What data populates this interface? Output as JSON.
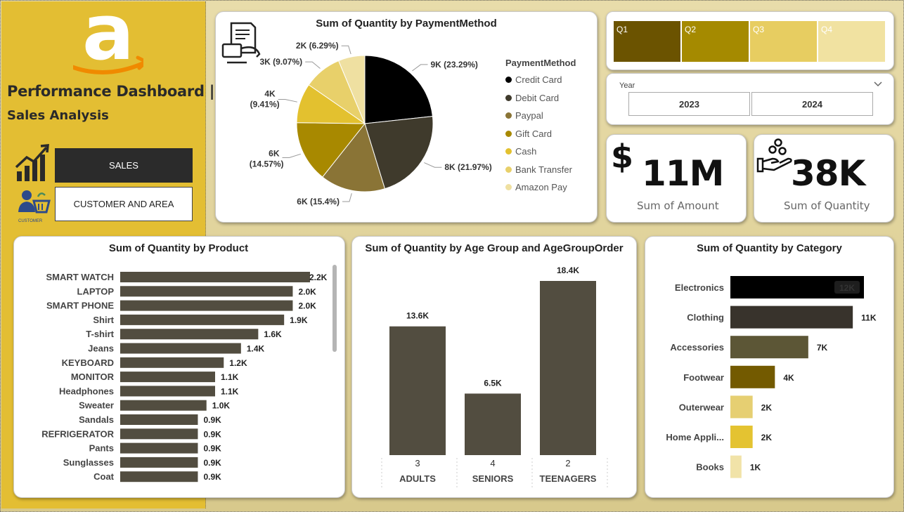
{
  "sidebar": {
    "title": "Performance Dashboard |",
    "subtitle": "Sales Analysis",
    "nav_sales": "SALES",
    "nav_customer": "CUSTOMER AND AREA",
    "customer_icon_caption": "CUSTOMER"
  },
  "kpi": {
    "amount_value": "11M",
    "amount_label": "Sum of Amount",
    "quantity_value": "38K",
    "quantity_label": "Sum of Quantity"
  },
  "quarters": [
    {
      "label": "Q1",
      "color": "#6b5300"
    },
    {
      "label": "Q2",
      "color": "#a58a00"
    },
    {
      "label": "Q3",
      "color": "#e7cd61"
    },
    {
      "label": "Q4",
      "color": "#f1e2a1"
    }
  ],
  "year_slicer": {
    "label": "Year",
    "options": [
      "2023",
      "2024"
    ]
  },
  "chart_data": [
    {
      "id": "payment",
      "type": "pie",
      "title": "Sum of Quantity by PaymentMethod",
      "legend_title": "PaymentMethod",
      "legend_position": "right",
      "slices": [
        {
          "name": "Credit Card",
          "label": "9K (23.29%)",
          "pct": 23.29,
          "color": "#000000"
        },
        {
          "name": "Debit Card",
          "label": "8K (21.97%)",
          "pct": 21.97,
          "color": "#3f3a2c"
        },
        {
          "name": "Paypal",
          "label": "6K (15.4%)",
          "pct": 15.4,
          "color": "#8a7436"
        },
        {
          "name": "Gift Card",
          "label": "6K (14.57%)",
          "pct": 14.57,
          "color": "#a88900"
        },
        {
          "name": "Cash",
          "label": "4K (9.41%)",
          "pct": 9.41,
          "color": "#e3c12f"
        },
        {
          "name": "Bank Transfer",
          "label": "3K (9.07%)",
          "pct": 9.07,
          "color": "#e8d06a"
        },
        {
          "name": "Amazon Pay",
          "label": "2K (6.29%)",
          "pct": 6.29,
          "color": "#efe0a1"
        }
      ]
    },
    {
      "id": "product",
      "type": "bar",
      "orientation": "horizontal",
      "title": "Sum of Quantity by Product",
      "bar_color": "#524d40",
      "categories": [
        "SMART WATCH",
        "LAPTOP",
        "SMART PHONE",
        "Shirt",
        "T-shirt",
        "Jeans",
        "KEYBOARD",
        "MONITOR",
        "Headphones",
        "Sweater",
        "Sandals",
        "REFRIGERATOR",
        "Pants",
        "Sunglasses",
        "Coat"
      ],
      "values": [
        2.2,
        2.0,
        2.0,
        1.9,
        1.6,
        1.4,
        1.2,
        1.1,
        1.1,
        1.0,
        0.9,
        0.9,
        0.9,
        0.9,
        0.9
      ],
      "labels": [
        "2.2K",
        "2.0K",
        "2.0K",
        "1.9K",
        "1.6K",
        "1.4K",
        "1.2K",
        "1.1K",
        "1.1K",
        "1.0K",
        "0.9K",
        "0.9K",
        "0.9K",
        "0.9K",
        "0.9K"
      ],
      "unit": "K"
    },
    {
      "id": "age",
      "type": "bar",
      "orientation": "vertical",
      "title": "Sum of Quantity by Age Group and AgeGroupOrder",
      "bar_color": "#524d40",
      "categories": [
        "ADULTS",
        "SENIORS",
        "TEENAGERS"
      ],
      "order": [
        "3",
        "4",
        "2"
      ],
      "values": [
        13.6,
        6.5,
        18.4
      ],
      "labels": [
        "13.6K",
        "6.5K",
        "18.4K"
      ],
      "unit": "K"
    },
    {
      "id": "category",
      "type": "bar",
      "orientation": "horizontal",
      "title": "Sum of Quantity by Category",
      "categories": [
        "Electronics",
        "Clothing",
        "Accessories",
        "Footwear",
        "Outerwear",
        "Home Appli...",
        "Books"
      ],
      "values": [
        12,
        11,
        7,
        4,
        2,
        2,
        1
      ],
      "labels": [
        "12K",
        "11K",
        "7K",
        "4K",
        "2K",
        "2K",
        "1K"
      ],
      "colors": [
        "#000000",
        "#38332c",
        "#5c5636",
        "#735a00",
        "#e6cf72",
        "#e4c331",
        "#f1e3a8"
      ],
      "unit": "K"
    }
  ]
}
